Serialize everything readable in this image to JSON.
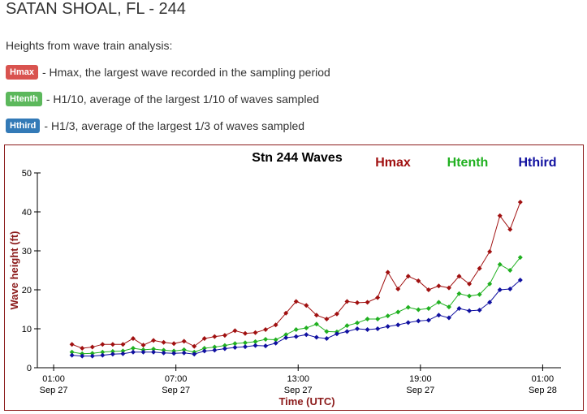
{
  "header": {
    "title": "SATAN SHOAL, FL - 244",
    "intro": "Heights from wave train analysis:"
  },
  "legend_items": [
    {
      "badge": "Hmax",
      "color": "#d9534f",
      "text": "- Hmax, the largest wave recorded in the sampling period"
    },
    {
      "badge": "Htenth",
      "color": "#5cb85c",
      "text": "- H1/10, average of the largest 1/10 of waves sampled"
    },
    {
      "badge": "Hthird",
      "color": "#337ab7",
      "text": "- H1/3, average of the largest 1/3 of waves sampled"
    }
  ],
  "chart_data": {
    "type": "line",
    "title": "Stn 244 Waves",
    "x_label": "Time (UTC)",
    "y_label": "Wave height (ft)",
    "x": [
      0.9,
      1.4,
      1.9,
      2.4,
      2.9,
      3.4,
      3.9,
      4.4,
      4.9,
      5.4,
      5.9,
      6.4,
      6.9,
      7.4,
      7.9,
      8.4,
      8.9,
      9.4,
      9.9,
      10.4,
      10.9,
      11.4,
      11.9,
      12.4,
      12.9,
      13.4,
      13.9,
      14.4,
      14.9,
      15.4,
      15.9,
      16.4,
      16.9,
      17.4,
      17.9,
      18.4,
      18.9,
      19.4,
      19.9,
      20.4,
      20.9,
      21.4,
      21.9,
      22.4,
      22.9
    ],
    "xlim": [
      -0.8,
      24.9
    ],
    "xticks": [
      {
        "value": 0,
        "label": "01:00",
        "date": "Sep 27"
      },
      {
        "value": 6,
        "label": "07:00",
        "date": "Sep 27"
      },
      {
        "value": 12,
        "label": "13:00",
        "date": "Sep 27"
      },
      {
        "value": 18,
        "label": "19:00",
        "date": "Sep 27"
      },
      {
        "value": 24,
        "label": "01:00",
        "date": "Sep 28"
      }
    ],
    "ylim": [
      0,
      50
    ],
    "yticks": [
      0,
      10,
      20,
      30,
      40,
      50
    ],
    "grid": false,
    "series": [
      {
        "name": "Hmax",
        "color": "#a01010",
        "values": [
          6,
          5,
          5.3,
          6,
          6,
          6,
          7.5,
          5.8,
          7,
          6.5,
          6.2,
          6.8,
          5.5,
          7.5,
          8,
          8.3,
          9.5,
          8.8,
          9,
          9.8,
          11,
          14,
          17,
          16,
          13.5,
          12.5,
          13.8,
          17,
          16.7,
          16.8,
          18,
          24.5,
          20.2,
          23.5,
          22.3,
          20,
          21,
          20.5,
          23.5,
          21.5,
          25.5,
          29.8,
          39,
          35.5,
          42.5
        ]
      },
      {
        "name": "Htenth",
        "color": "#20b020",
        "values": [
          4,
          3.6,
          3.7,
          4,
          4.2,
          4.3,
          5,
          4.6,
          4.8,
          4.5,
          4.3,
          4.6,
          4,
          5,
          5.3,
          5.7,
          6.2,
          6.4,
          6.7,
          7.3,
          7.2,
          8.5,
          9.8,
          10.2,
          11.2,
          9.3,
          9.2,
          10.8,
          11.5,
          12.5,
          12.5,
          13.3,
          14.3,
          15.5,
          14.9,
          15.2,
          16.8,
          15.6,
          19,
          18.4,
          18.8,
          21.5,
          26.5,
          25,
          28.3
        ]
      },
      {
        "name": "Hthird",
        "color": "#1010a0",
        "values": [
          3.2,
          3,
          3,
          3.2,
          3.5,
          3.6,
          4,
          4,
          4,
          3.8,
          3.7,
          3.8,
          3.5,
          4.3,
          4.5,
          4.9,
          5.2,
          5.4,
          5.7,
          5.6,
          6.3,
          7.7,
          8,
          8.5,
          7.8,
          7.5,
          8.7,
          9.3,
          10,
          9.8,
          10,
          10.6,
          11,
          11.6,
          12,
          12.2,
          13.5,
          12.8,
          15.2,
          14.6,
          14.8,
          16.8,
          20,
          20.2,
          22.5
        ]
      }
    ]
  }
}
